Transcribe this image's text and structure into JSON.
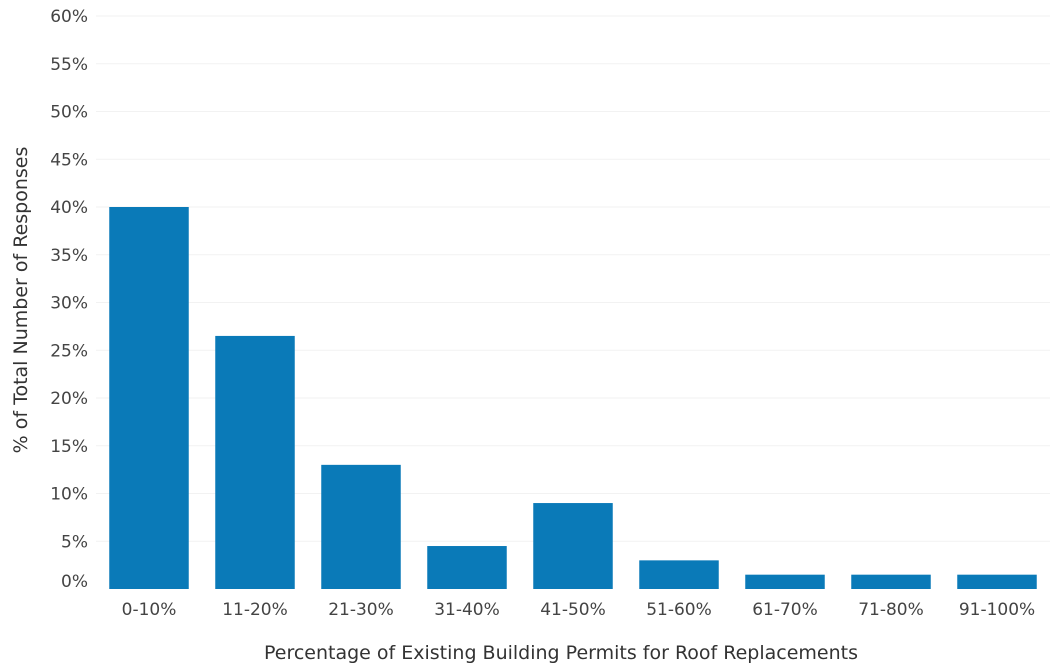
{
  "chart_data": {
    "type": "bar",
    "title": "",
    "xlabel": "Percentage of Existing Building Permits for Roof Replacements",
    "ylabel": "% of Total Number of Responses",
    "categories": [
      "0-10%",
      "11-20%",
      "21-30%",
      "31-40%",
      "41-50%",
      "51-60%",
      "61-70%",
      "71-80%",
      "91-100%"
    ],
    "values": [
      0.4,
      0.265,
      0.13,
      0.045,
      0.09,
      0.03,
      0.015,
      0.015,
      0.015
    ],
    "ylim": [
      0,
      0.6
    ],
    "yticks": [
      0,
      0.05,
      0.1,
      0.15,
      0.2,
      0.25,
      0.3,
      0.35,
      0.4,
      0.45,
      0.5,
      0.55,
      0.6
    ],
    "ytick_labels": [
      "0%",
      "5%",
      "10%",
      "15%",
      "20%",
      "25%",
      "30%",
      "35%",
      "40%",
      "45%",
      "50%",
      "55%",
      "60%"
    ],
    "grid": true,
    "legend": "none",
    "colors": {
      "bar": "#0a7ab8",
      "grid": "#f2f2f2"
    }
  }
}
